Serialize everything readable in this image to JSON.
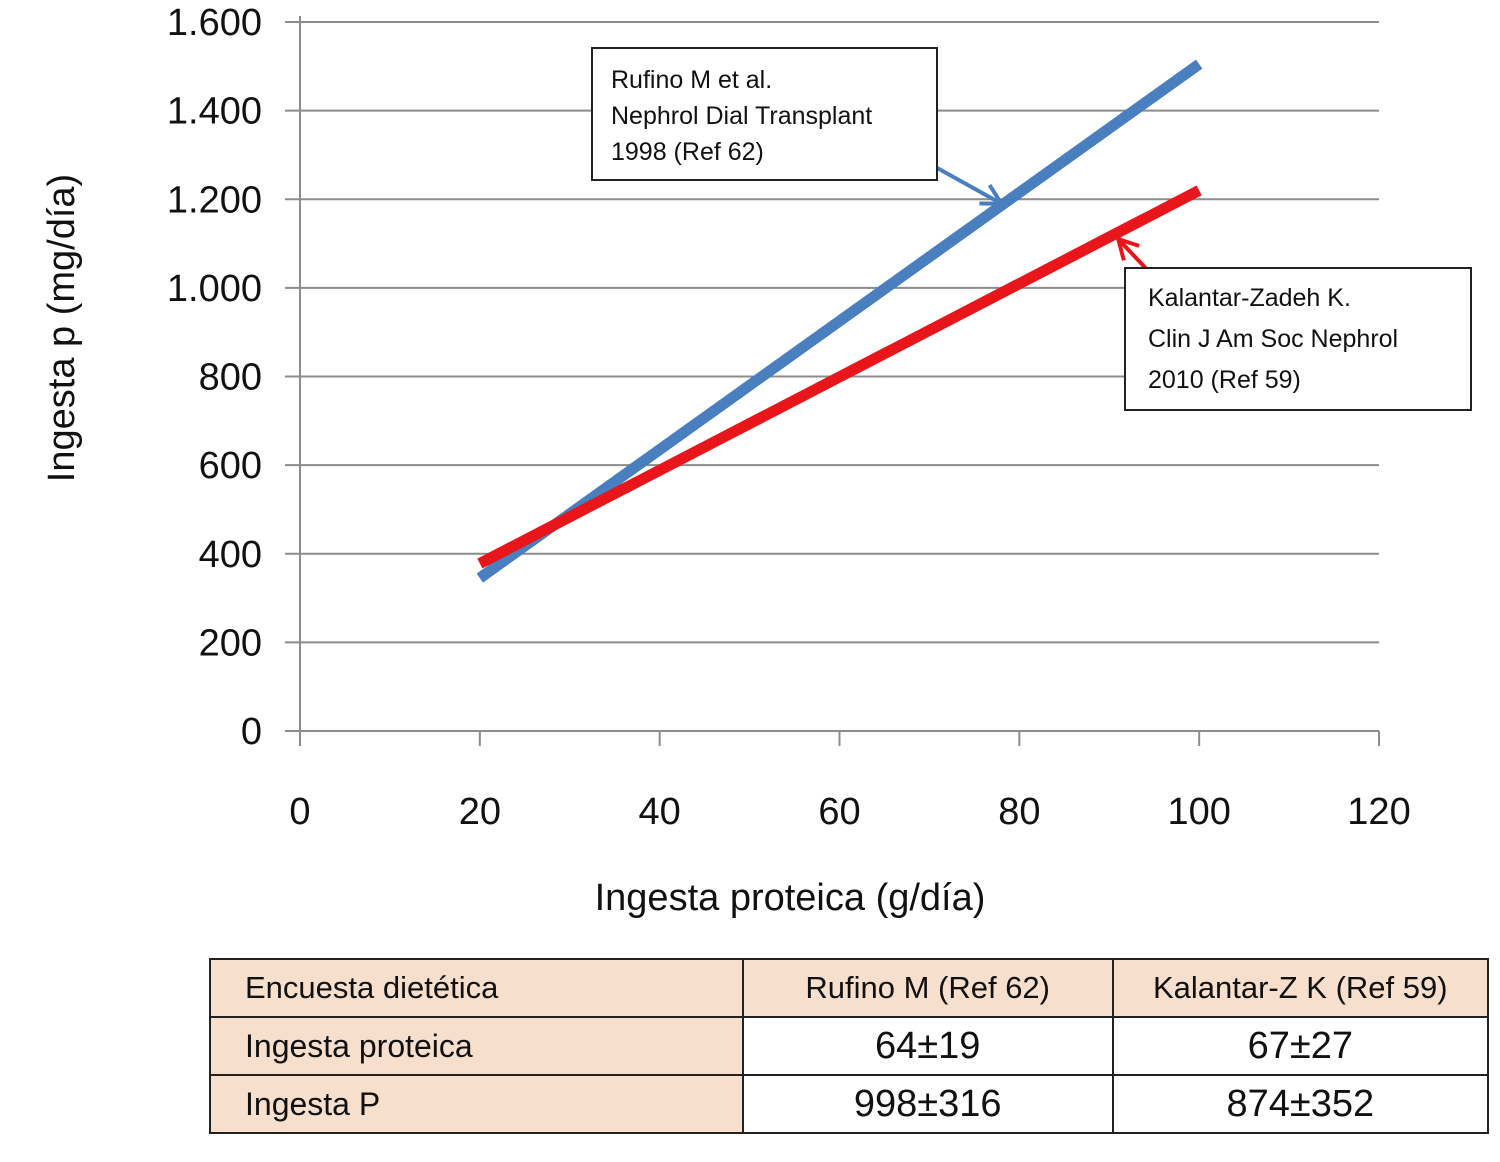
{
  "chart_data": {
    "type": "line",
    "title": "",
    "xlabel": "Ingesta proteica (g/día)",
    "ylabel": "Ingesta p (mg/día)",
    "xlim": [
      0,
      120
    ],
    "ylim": [
      0,
      1600
    ],
    "x_ticks": [
      0,
      20,
      40,
      60,
      80,
      100,
      120
    ],
    "y_ticks": [
      0,
      200,
      400,
      600,
      800,
      1000,
      1200,
      1400,
      1600
    ],
    "y_tick_labels": [
      "0",
      "200",
      "400",
      "600",
      "800",
      "1.000",
      "1.200",
      "1.400",
      "1.600"
    ],
    "grid": "horizontal",
    "series": [
      {
        "x": [
          20,
          100
        ],
        "y": [
          345,
          1505
        ],
        "color": "#4a7fbf"
      },
      {
        "x": [
          20,
          100
        ],
        "y": [
          378,
          1220
        ],
        "color": "#e8161b"
      }
    ],
    "annotations": [
      {
        "lines": [
          "Rufino M et al.",
          "Nephrol Dial Transplant",
          "1998 (Ref 62)"
        ],
        "points_to": {
          "x": 78,
          "y": 1190
        },
        "arrow_color": "#4a7fbf"
      },
      {
        "lines": [
          "Kalantar-Zadeh K.",
          "Clin J Am Soc Nephrol",
          " 2010 (Ref 59)"
        ],
        "points_to": {
          "x": 91,
          "y": 1110
        },
        "arrow_color": "#e8161b"
      }
    ]
  },
  "table": {
    "header": [
      "Encuesta dietética",
      "Rufino M (Ref 62)",
      "Kalantar-Z K (Ref 59)"
    ],
    "rows": [
      [
        "Ingesta proteica",
        "64±19",
        "67±27"
      ],
      [
        "Ingesta P",
        "998±316",
        "874±352"
      ]
    ]
  }
}
